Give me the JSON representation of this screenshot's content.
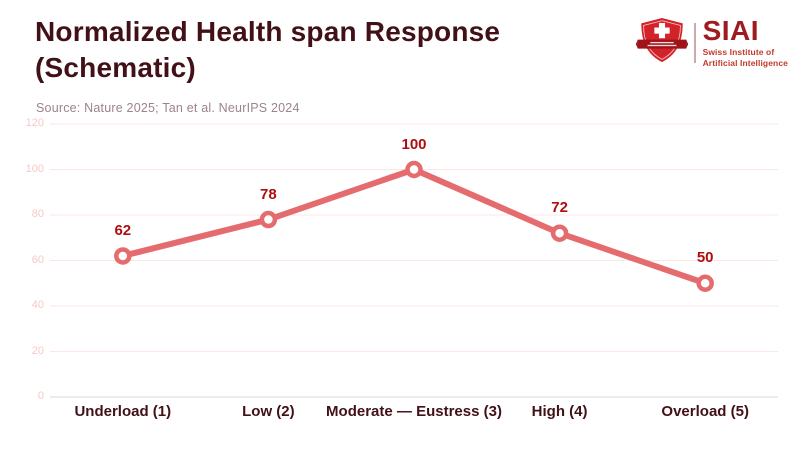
{
  "header": {
    "title": "Normalized Health span Response (Schematic)",
    "source": "Source: Nature 2025; Tan et al. NeurIPS 2024",
    "logo": {
      "name": "SIAI",
      "subtitle_line1": "Swiss Institute of",
      "subtitle_line2": "Artificial Intelligence"
    }
  },
  "chart_data": {
    "type": "line",
    "title": "Normalized Health span Response (Schematic)",
    "subtitle": "Source: Nature 2025; Tan et al. NeurIPS 2024",
    "categories": [
      "Underload (1)",
      "Low (2)",
      "Moderate — Eustress (3)",
      "High (4)",
      "Overload (5)"
    ],
    "series": [
      {
        "name": "Normalized health span response",
        "values": [
          62,
          78,
          100,
          72,
          50
        ]
      }
    ],
    "data_labels": [
      62,
      78,
      100,
      72,
      50
    ],
    "xlabel": "",
    "ylabel": "",
    "ylim": [
      0,
      120
    ],
    "yticks": [
      0,
      20,
      40,
      60,
      80,
      100,
      120
    ],
    "grid": true,
    "legend": "none",
    "marker": "open-circle"
  },
  "colors": {
    "title": "#421117",
    "source": "#9c8488",
    "line": "#e56c6e",
    "marker_fill": "#ffffff",
    "data_label": "#b00d11",
    "category_label": "#421117",
    "tick_label": "#f5c9c6",
    "gridline": "#fbe7e4",
    "zero_line": "#d8d8d8",
    "logo_shield_red": "#d2232a",
    "logo_ribbon_red": "#a01318",
    "logo_name_red": "#9e1b20",
    "logo_subtitle_red": "#c0392b"
  }
}
